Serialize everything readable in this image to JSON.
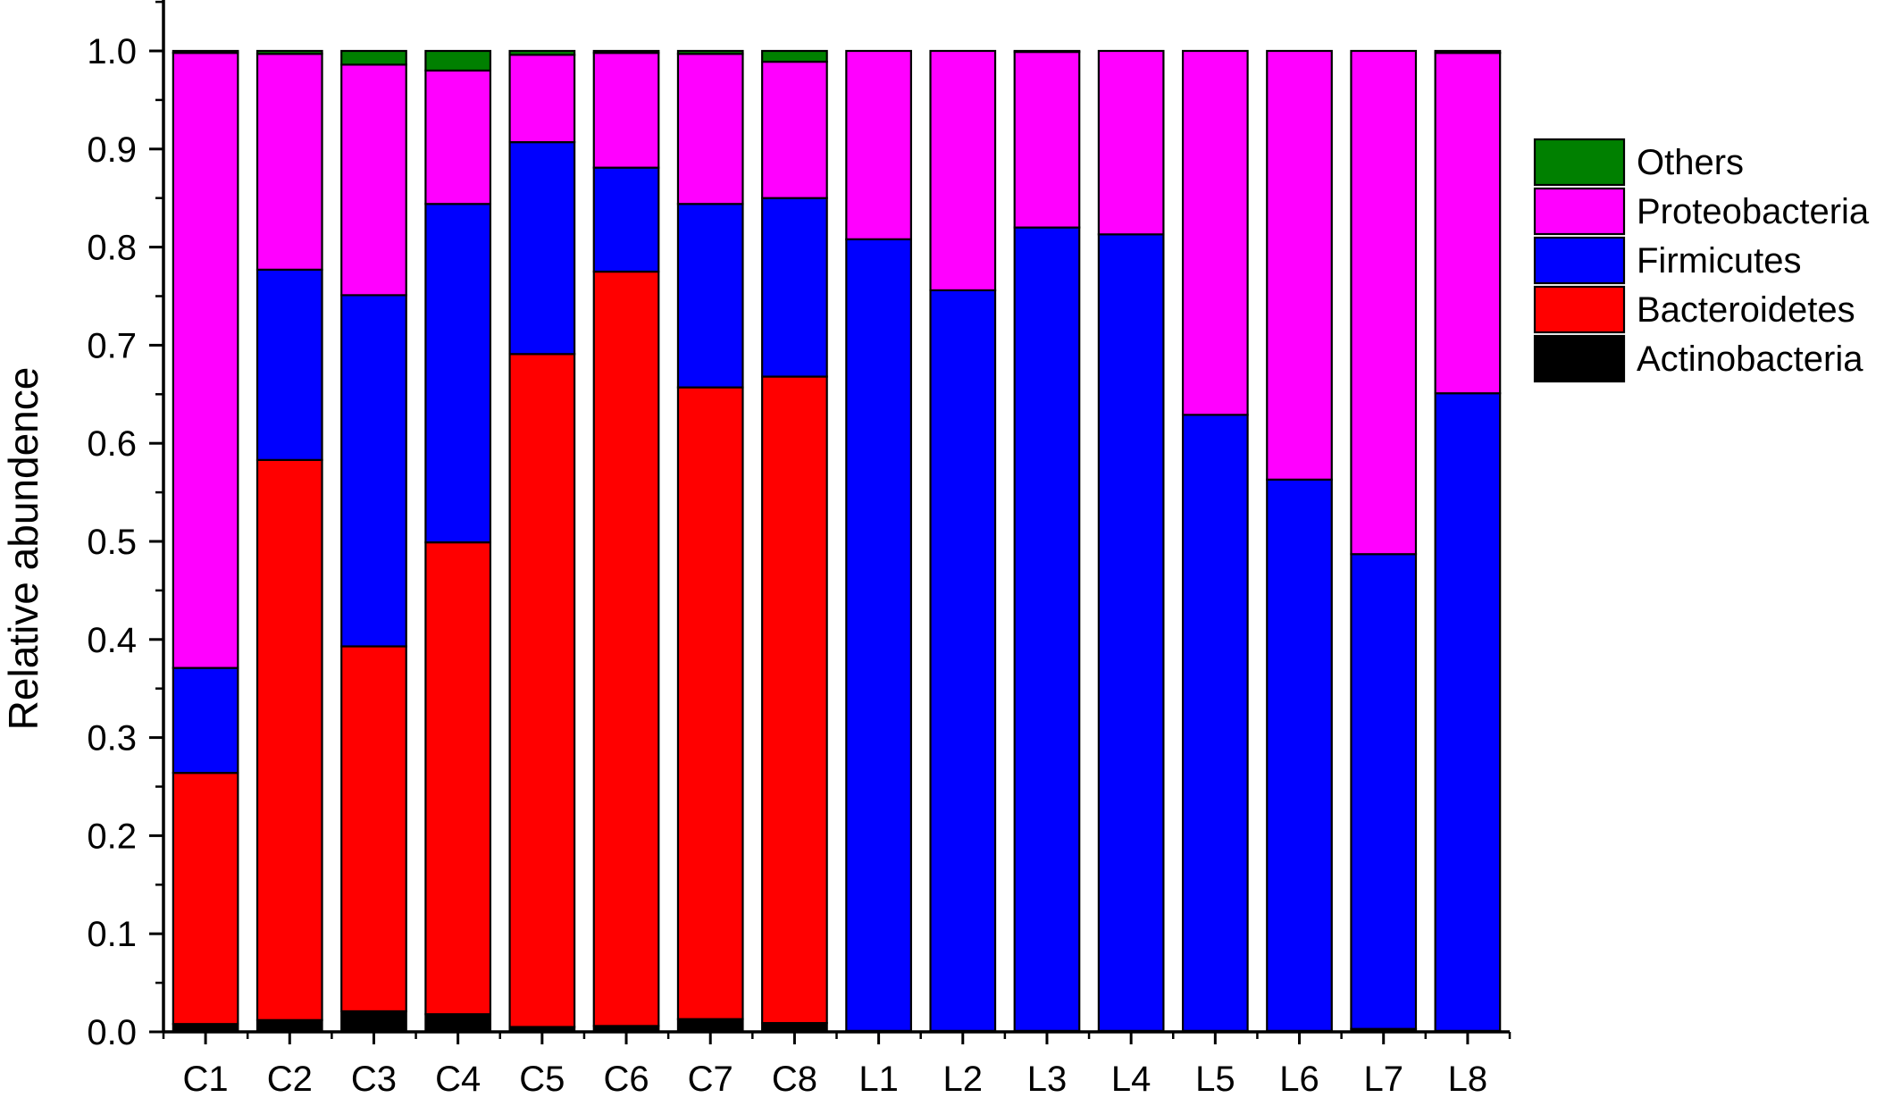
{
  "chart_data": {
    "type": "bar",
    "stacked": true,
    "title": "",
    "xlabel": "",
    "ylabel": "Relative abundence",
    "ylim": [
      0,
      1.0
    ],
    "yticks": [
      "0.0",
      "0.1",
      "0.2",
      "0.3",
      "0.4",
      "0.5",
      "0.6",
      "0.7",
      "0.8",
      "0.9",
      "1.0"
    ],
    "grid": false,
    "legend_position": "right",
    "categories": [
      "C1",
      "C2",
      "C3",
      "C4",
      "C5",
      "C6",
      "C7",
      "C8",
      "L1",
      "L2",
      "L3",
      "L4",
      "L5",
      "L6",
      "L7",
      "L8"
    ],
    "series": [
      {
        "name": "Actinobacteria",
        "color": "#000000",
        "values": [
          0.008,
          0.012,
          0.021,
          0.018,
          0.005,
          0.006,
          0.013,
          0.009,
          0.001,
          0.001,
          0.001,
          0.001,
          0.001,
          0.001,
          0.003,
          0.001
        ]
      },
      {
        "name": "Bacteroidetes",
        "color": "#ff0000",
        "values": [
          0.256,
          0.571,
          0.372,
          0.481,
          0.686,
          0.769,
          0.644,
          0.659,
          0.0,
          0.0,
          0.0,
          0.0,
          0.0,
          0.0,
          0.0,
          0.0
        ]
      },
      {
        "name": "Firmicutes",
        "color": "#0000ff",
        "values": [
          0.107,
          0.194,
          0.358,
          0.345,
          0.216,
          0.106,
          0.187,
          0.182,
          0.807,
          0.755,
          0.819,
          0.812,
          0.628,
          0.562,
          0.484,
          0.65
        ]
      },
      {
        "name": "Proteobacteria",
        "color": "#ff00ff",
        "values": [
          0.627,
          0.22,
          0.235,
          0.136,
          0.089,
          0.117,
          0.153,
          0.139,
          0.192,
          0.244,
          0.179,
          0.187,
          0.371,
          0.437,
          0.513,
          0.347
        ]
      },
      {
        "name": "Others",
        "color": "#008000",
        "values": [
          0.002,
          0.003,
          0.014,
          0.02,
          0.004,
          0.002,
          0.003,
          0.011,
          0.0,
          0.0,
          0.001,
          0.0,
          0.0,
          0.0,
          0.0,
          0.002
        ]
      }
    ],
    "legend_order": [
      "Others",
      "Proteobacteria",
      "Firmicutes",
      "Bacteroidetes",
      "Actinobacteria"
    ]
  }
}
